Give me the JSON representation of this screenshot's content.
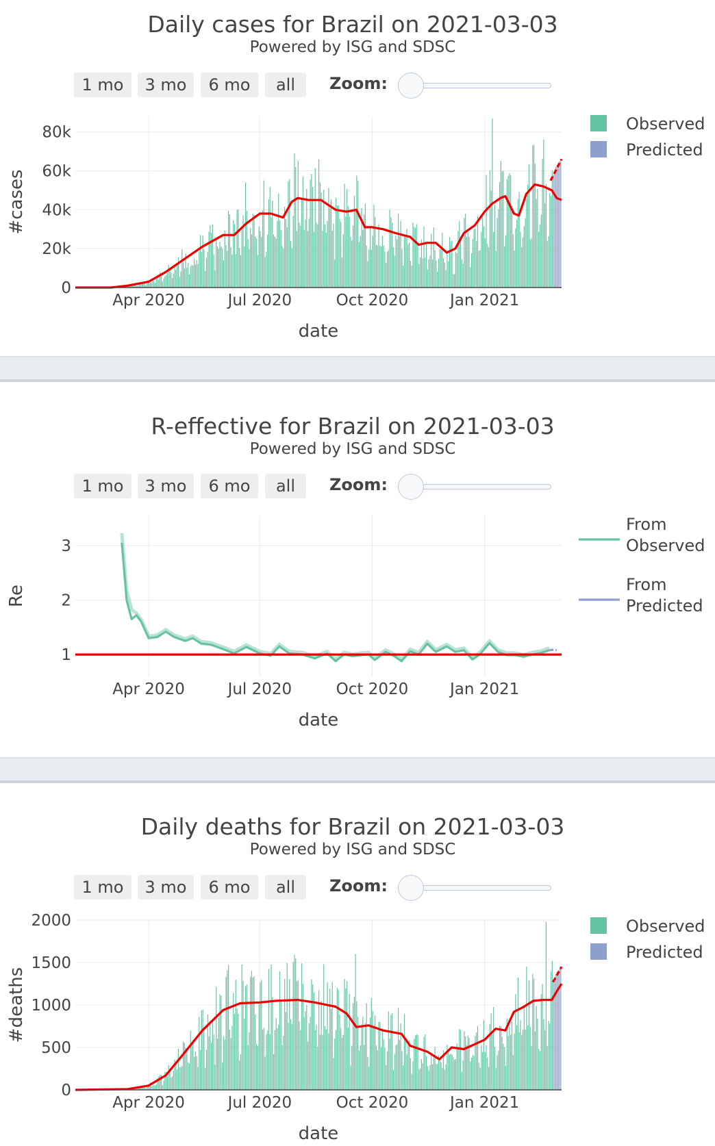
{
  "buttons": [
    "1 mo",
    "3 mo",
    "6 mo",
    "all"
  ],
  "zoom_label": "Zoom:",
  "chart_data": [
    {
      "type": "bar",
      "title": "Daily cases for Brazil on 2021-03-03",
      "subtitle": "Powered by ISG and SDSC",
      "xlabel": "date",
      "ylabel": "#cases",
      "x_range": [
        "2020-02-01",
        "2021-03-05"
      ],
      "ylim": [
        0,
        88000
      ],
      "y_ticks": [
        0,
        20000,
        40000,
        60000,
        80000
      ],
      "y_tick_labels": [
        "0",
        "20k",
        "40k",
        "60k",
        "80k"
      ],
      "x_ticks": [
        "2020-04-01",
        "2020-07-01",
        "2020-10-01",
        "2021-01-01"
      ],
      "x_tick_labels": [
        "Apr 2020",
        "Jul 2020",
        "Oct 2020",
        "Jan 2021"
      ],
      "legend": {
        "position": "top-right",
        "entries": [
          {
            "label": "Observed",
            "color": "#66c2a5"
          },
          {
            "label": "Predicted",
            "color": "#8da0cb"
          }
        ]
      },
      "observed_color": "#66c2a5",
      "predicted_color": "#8da0cb",
      "trend_color": "#ee0000",
      "observed_end": "2021-02-25",
      "spikes": [
        [
          "2020-06-19",
          54000
        ],
        [
          "2020-07-29",
          69000
        ],
        [
          "2020-08-05",
          57000
        ],
        [
          "2021-01-07",
          87000
        ],
        [
          "2021-02-17",
          66000
        ]
      ],
      "trend": [
        [
          "2020-02-01",
          0
        ],
        [
          "2020-03-01",
          0
        ],
        [
          "2020-03-15",
          1000
        ],
        [
          "2020-04-01",
          3000
        ],
        [
          "2020-04-15",
          8000
        ],
        [
          "2020-05-01",
          15000
        ],
        [
          "2020-05-15",
          21000
        ],
        [
          "2020-06-01",
          27000
        ],
        [
          "2020-06-10",
          27000
        ],
        [
          "2020-06-20",
          33000
        ],
        [
          "2020-07-01",
          38000
        ],
        [
          "2020-07-10",
          38000
        ],
        [
          "2020-07-20",
          36000
        ],
        [
          "2020-07-27",
          44000
        ],
        [
          "2020-08-01",
          46000
        ],
        [
          "2020-08-10",
          45000
        ],
        [
          "2020-08-20",
          45000
        ],
        [
          "2020-09-01",
          40000
        ],
        [
          "2020-09-10",
          39000
        ],
        [
          "2020-09-18",
          40000
        ],
        [
          "2020-09-25",
          31000
        ],
        [
          "2020-10-01",
          31000
        ],
        [
          "2020-10-10",
          30000
        ],
        [
          "2020-10-20",
          28000
        ],
        [
          "2020-11-01",
          26000
        ],
        [
          "2020-11-08",
          22000
        ],
        [
          "2020-11-15",
          23000
        ],
        [
          "2020-11-22",
          23000
        ],
        [
          "2020-12-01",
          18000
        ],
        [
          "2020-12-08",
          20000
        ],
        [
          "2020-12-15",
          28000
        ],
        [
          "2020-12-24",
          32000
        ],
        [
          "2021-01-01",
          39000
        ],
        [
          "2021-01-07",
          43000
        ],
        [
          "2021-01-14",
          46000
        ],
        [
          "2021-01-18",
          47000
        ],
        [
          "2021-01-25",
          38000
        ],
        [
          "2021-01-29",
          37000
        ],
        [
          "2021-02-04",
          48000
        ],
        [
          "2021-02-11",
          53000
        ],
        [
          "2021-02-18",
          52000
        ],
        [
          "2021-02-25",
          50000
        ],
        [
          "2021-03-01",
          46000
        ],
        [
          "2021-03-05",
          45000
        ]
      ],
      "predicted_bars": [
        [
          "2021-02-26",
          58000
        ],
        [
          "2021-02-27",
          60000
        ],
        [
          "2021-02-28",
          62000
        ],
        [
          "2021-03-01",
          63000
        ],
        [
          "2021-03-02",
          64000
        ],
        [
          "2021-03-03",
          65000
        ],
        [
          "2021-03-04",
          66000
        ]
      ],
      "predicted_trend": [
        [
          "2021-02-24",
          55000
        ],
        [
          "2021-03-05",
          66000
        ]
      ]
    },
    {
      "type": "line",
      "title": "R-effective for Brazil on 2021-03-03",
      "subtitle": "Powered by ISG and SDSC",
      "xlabel": "date",
      "ylabel": "Re",
      "x_range": [
        "2020-02-01",
        "2021-03-05"
      ],
      "ylim": [
        0.6,
        3.55
      ],
      "y_ticks": [
        1,
        2,
        3
      ],
      "y_tick_labels": [
        "1",
        "2",
        "3"
      ],
      "x_ticks": [
        "2020-04-01",
        "2020-07-01",
        "2020-10-01",
        "2021-01-01"
      ],
      "x_tick_labels": [
        "Apr 2020",
        "Jul 2020",
        "Oct 2020",
        "Jan 2021"
      ],
      "legend": {
        "position": "top-right",
        "entries": [
          {
            "label": "From Observed",
            "lines": [
              "From",
              "Observed"
            ],
            "color": "#66c2a5"
          },
          {
            "label": "From Predicted",
            "lines": [
              "From",
              "Predicted"
            ],
            "color": "#8da0cb"
          }
        ]
      },
      "reference_line": 1,
      "reference_color": "#ee0000",
      "observed_color": "#66c2a5",
      "predicted_color": "#8da0cb",
      "series_observed": [
        [
          "2020-03-10",
          3.05
        ],
        [
          "2020-03-14",
          2.0
        ],
        [
          "2020-03-18",
          1.65
        ],
        [
          "2020-03-22",
          1.72
        ],
        [
          "2020-03-26",
          1.6
        ],
        [
          "2020-04-01",
          1.3
        ],
        [
          "2020-04-08",
          1.32
        ],
        [
          "2020-04-15",
          1.42
        ],
        [
          "2020-04-22",
          1.32
        ],
        [
          "2020-05-01",
          1.25
        ],
        [
          "2020-05-07",
          1.3
        ],
        [
          "2020-05-14",
          1.2
        ],
        [
          "2020-05-22",
          1.18
        ],
        [
          "2020-06-01",
          1.1
        ],
        [
          "2020-06-10",
          1.02
        ],
        [
          "2020-06-20",
          1.14
        ],
        [
          "2020-07-01",
          1.02
        ],
        [
          "2020-07-10",
          0.98
        ],
        [
          "2020-07-17",
          1.15
        ],
        [
          "2020-07-25",
          1.02
        ],
        [
          "2020-08-05",
          1.0
        ],
        [
          "2020-08-15",
          0.93
        ],
        [
          "2020-08-25",
          1.02
        ],
        [
          "2020-09-01",
          0.88
        ],
        [
          "2020-09-08",
          1.0
        ],
        [
          "2020-09-15",
          0.97
        ],
        [
          "2020-09-22",
          0.99
        ],
        [
          "2020-09-28",
          1.0
        ],
        [
          "2020-10-03",
          0.9
        ],
        [
          "2020-10-12",
          1.05
        ],
        [
          "2020-10-19",
          0.97
        ],
        [
          "2020-10-25",
          0.88
        ],
        [
          "2020-11-01",
          1.06
        ],
        [
          "2020-11-08",
          1.0
        ],
        [
          "2020-11-15",
          1.2
        ],
        [
          "2020-11-22",
          1.05
        ],
        [
          "2020-12-01",
          1.15
        ],
        [
          "2020-12-08",
          1.05
        ],
        [
          "2020-12-15",
          1.08
        ],
        [
          "2020-12-22",
          0.91
        ],
        [
          "2020-12-28",
          1.0
        ],
        [
          "2021-01-05",
          1.21
        ],
        [
          "2021-01-12",
          1.05
        ],
        [
          "2021-01-19",
          0.99
        ],
        [
          "2021-01-26",
          0.99
        ],
        [
          "2021-02-02",
          0.96
        ],
        [
          "2021-02-09",
          1.0
        ],
        [
          "2021-02-16",
          1.03
        ],
        [
          "2021-02-23",
          1.08
        ]
      ],
      "series_predicted": [
        [
          "2021-02-23",
          1.08
        ],
        [
          "2021-02-27",
          1.09
        ],
        [
          "2021-03-01",
          1.08
        ]
      ]
    },
    {
      "type": "bar",
      "title": "Daily deaths for Brazil on 2021-03-03",
      "subtitle": "Powered by ISG and SDSC",
      "xlabel": "date",
      "ylabel": "#deaths",
      "x_range": [
        "2020-02-01",
        "2021-03-05"
      ],
      "ylim": [
        0,
        2000
      ],
      "y_ticks": [
        0,
        500,
        1000,
        1500,
        2000
      ],
      "y_tick_labels": [
        "0",
        "500",
        "1000",
        "1500",
        "2000"
      ],
      "x_ticks": [
        "2020-04-01",
        "2020-07-01",
        "2020-10-01",
        "2021-01-01"
      ],
      "x_tick_labels": [
        "Apr 2020",
        "Jul 2020",
        "Oct 2020",
        "Jan 2021"
      ],
      "legend": {
        "position": "top-right",
        "entries": [
          {
            "label": "Observed",
            "color": "#66c2a5"
          },
          {
            "label": "Predicted",
            "color": "#8da0cb"
          }
        ]
      },
      "observed_color": "#66c2a5",
      "predicted_color": "#8da0cb",
      "trend_color": "#ee0000",
      "observed_end": "2021-02-25",
      "spikes": [
        [
          "2020-06-05",
          1470
        ],
        [
          "2020-07-29",
          1590
        ],
        [
          "2020-09-17",
          1600
        ],
        [
          "2021-02-20",
          1980
        ],
        [
          "2021-03-01",
          1650
        ]
      ],
      "trend": [
        [
          "2020-02-01",
          0
        ],
        [
          "2020-03-15",
          10
        ],
        [
          "2020-04-01",
          50
        ],
        [
          "2020-04-15",
          170
        ],
        [
          "2020-05-01",
          450
        ],
        [
          "2020-05-15",
          700
        ],
        [
          "2020-06-01",
          940
        ],
        [
          "2020-06-15",
          1020
        ],
        [
          "2020-07-01",
          1030
        ],
        [
          "2020-07-15",
          1050
        ],
        [
          "2020-08-01",
          1060
        ],
        [
          "2020-08-15",
          1030
        ],
        [
          "2020-09-01",
          980
        ],
        [
          "2020-09-10",
          900
        ],
        [
          "2020-09-18",
          740
        ],
        [
          "2020-09-28",
          760
        ],
        [
          "2020-10-10",
          700
        ],
        [
          "2020-10-25",
          660
        ],
        [
          "2020-11-01",
          520
        ],
        [
          "2020-11-15",
          450
        ],
        [
          "2020-11-25",
          360
        ],
        [
          "2020-12-05",
          500
        ],
        [
          "2020-12-15",
          480
        ],
        [
          "2021-01-01",
          590
        ],
        [
          "2021-01-10",
          720
        ],
        [
          "2021-01-18",
          700
        ],
        [
          "2021-01-25",
          920
        ],
        [
          "2021-02-01",
          970
        ],
        [
          "2021-02-10",
          1050
        ],
        [
          "2021-02-18",
          1060
        ],
        [
          "2021-02-25",
          1060
        ],
        [
          "2021-03-01",
          1160
        ],
        [
          "2021-03-05",
          1250
        ]
      ],
      "predicted_bars": [
        [
          "2021-02-26",
          1300
        ],
        [
          "2021-02-27",
          1330
        ],
        [
          "2021-02-28",
          1360
        ],
        [
          "2021-03-01",
          1390
        ],
        [
          "2021-03-02",
          1410
        ],
        [
          "2021-03-03",
          1430
        ],
        [
          "2021-03-04",
          1440
        ]
      ],
      "predicted_trend": [
        [
          "2021-02-26",
          1270
        ],
        [
          "2021-03-05",
          1450
        ]
      ]
    }
  ]
}
